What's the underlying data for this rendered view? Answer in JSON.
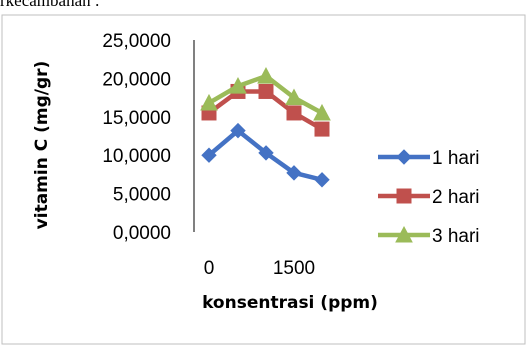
{
  "caption_fragment": "rkecambahan :",
  "chart_data": {
    "type": "line",
    "title": "",
    "xlabel": "konsentrasi (ppm)",
    "ylabel": "vitamin C (mg/gr)",
    "x": [
      0,
      500,
      1000,
      1500,
      2000
    ],
    "x_tick_labels": [
      "0",
      "1500"
    ],
    "y_tick_labels": [
      "25,0000",
      "20,0000",
      "15,0000",
      "10,0000",
      "5,0000",
      "0,0000"
    ],
    "ylim": [
      0,
      25
    ],
    "grid": false,
    "legend_position": "right",
    "series": [
      {
        "name": "1 hari",
        "color": "#4472C4",
        "marker": "diamond",
        "values": [
          10.0,
          13.2,
          10.3,
          7.7,
          6.8
        ]
      },
      {
        "name": "2 hari",
        "color": "#C0504D",
        "marker": "square",
        "values": [
          15.5,
          18.3,
          18.3,
          15.5,
          13.4
        ]
      },
      {
        "name": "3 hari",
        "color": "#9BBB59",
        "marker": "triangle",
        "values": [
          16.8,
          19.0,
          20.3,
          17.5,
          15.5
        ]
      }
    ]
  }
}
